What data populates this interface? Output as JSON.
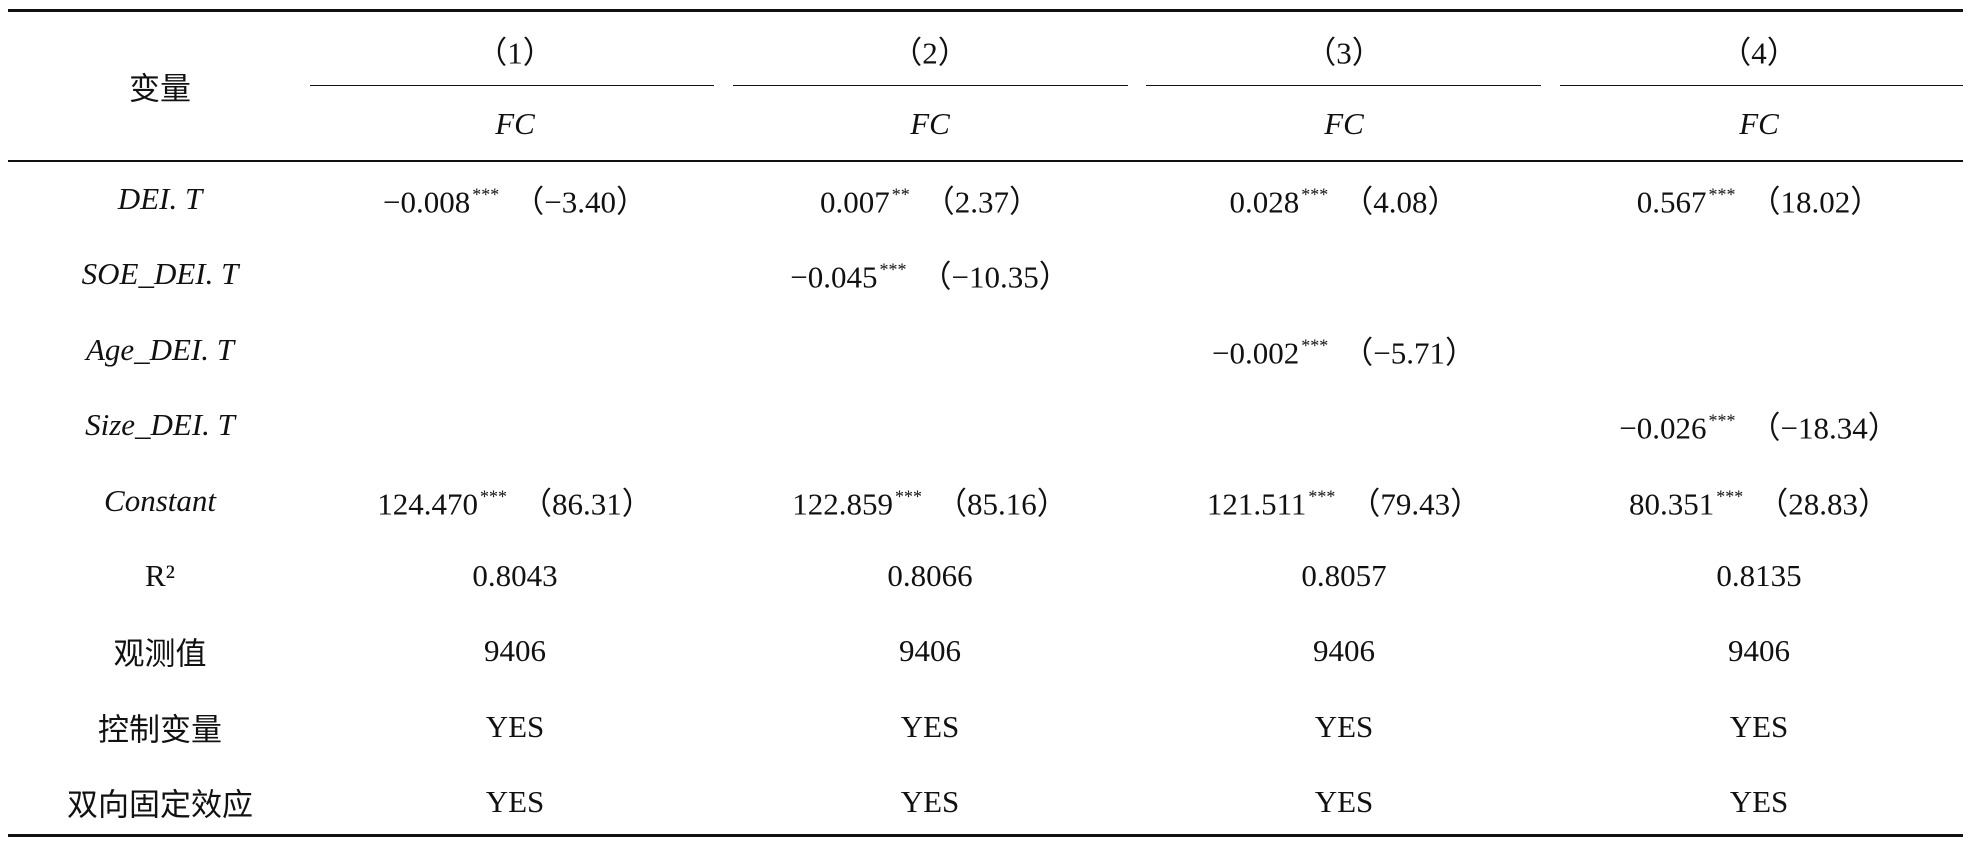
{
  "header": {
    "label": "变量",
    "columns": [
      "（1）",
      "（2）",
      "（3）",
      "（4）"
    ],
    "dependent": [
      "FC",
      "FC",
      "FC",
      "FC"
    ]
  },
  "rows": [
    {
      "label": "DEI. T",
      "cells": [
        {
          "coef": "−0.008",
          "stars": "***",
          "t": "（−3.40）"
        },
        {
          "coef": "0.007",
          "stars": "**",
          "t": "（2.37）"
        },
        {
          "coef": "0.028",
          "stars": "***",
          "t": "（4.08）"
        },
        {
          "coef": "0.567",
          "stars": "***",
          "t": "（18.02）"
        }
      ]
    },
    {
      "label": "SOE_DEI. T",
      "cells": [
        null,
        {
          "coef": "−0.045",
          "stars": "***",
          "t": "（−10.35）"
        },
        null,
        null
      ]
    },
    {
      "label": "Age_DEI. T",
      "cells": [
        null,
        null,
        {
          "coef": "−0.002",
          "stars": "***",
          "t": "（−5.71）"
        },
        null
      ]
    },
    {
      "label": "Size_DEI. T",
      "cells": [
        null,
        null,
        null,
        {
          "coef": "−0.026",
          "stars": "***",
          "t": "（−18.34）"
        }
      ]
    },
    {
      "label": "Constant",
      "cells": [
        {
          "coef": "124.470",
          "stars": "***",
          "t": "（86.31）"
        },
        {
          "coef": "122.859",
          "stars": "***",
          "t": "（85.16）"
        },
        {
          "coef": "121.511",
          "stars": "***",
          "t": "（79.43）"
        },
        {
          "coef": "80.351",
          "stars": "***",
          "t": "（28.83）"
        }
      ]
    },
    {
      "label": "R²",
      "cells": [
        {
          "coef": "0.8043"
        },
        {
          "coef": "0.8066"
        },
        {
          "coef": "0.8057"
        },
        {
          "coef": "0.8135"
        }
      ]
    },
    {
      "label": "观测值",
      "cells": [
        {
          "coef": "9406"
        },
        {
          "coef": "9406"
        },
        {
          "coef": "9406"
        },
        {
          "coef": "9406"
        }
      ]
    },
    {
      "label": "控制变量",
      "cells": [
        {
          "coef": "YES"
        },
        {
          "coef": "YES"
        },
        {
          "coef": "YES"
        },
        {
          "coef": "YES"
        }
      ]
    },
    {
      "label": "双向固定效应",
      "cells": [
        {
          "coef": "YES"
        },
        {
          "coef": "YES"
        },
        {
          "coef": "YES"
        },
        {
          "coef": "YES"
        }
      ]
    }
  ]
}
